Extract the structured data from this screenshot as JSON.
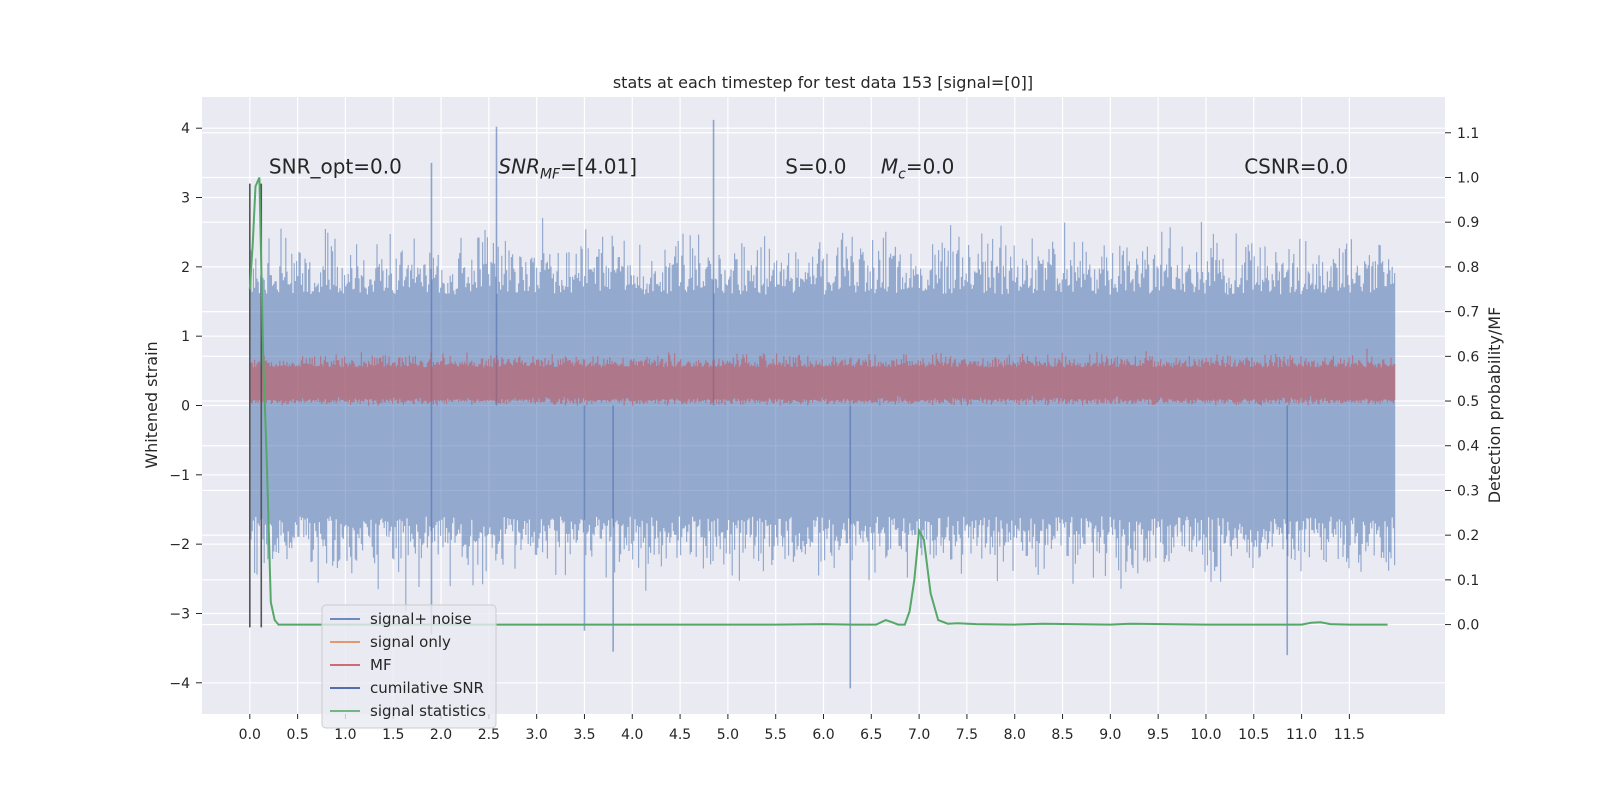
{
  "chart_data": {
    "type": "line",
    "title": "stats at each timestep for test data 153 [signal=[0]]",
    "xlabel": "",
    "ylabel": "Whitened strain",
    "y2label": "Detection probability/MF",
    "xlim": [
      -0.5,
      12.5
    ],
    "ylim": [
      -4.45,
      4.45
    ],
    "y2lim": [
      -0.2,
      1.18
    ],
    "x_ticks": [
      0.0,
      0.5,
      1.0,
      1.5,
      2.0,
      2.5,
      3.0,
      3.5,
      4.0,
      4.5,
      5.0,
      5.5,
      6.0,
      6.5,
      7.0,
      7.5,
      8.0,
      8.5,
      9.0,
      9.5,
      10.0,
      10.5,
      11.0,
      11.5
    ],
    "y_ticks": [
      4,
      3,
      2,
      1,
      0,
      -1,
      -2,
      -3,
      -4
    ],
    "y2_ticks": [
      1.1,
      1.0,
      0.9,
      0.8,
      0.7,
      0.6,
      0.5,
      0.4,
      0.3,
      0.2,
      0.1,
      0.0
    ],
    "grid": true,
    "legend_position": "lower-left",
    "annotations": [
      {
        "text": "SNR_opt=0.0",
        "x": 0.2,
        "y": 3.35
      },
      {
        "text": "SNR_MF=[4.01]",
        "x": 2.6,
        "y": 3.35
      },
      {
        "text": "S=0.0",
        "x": 5.6,
        "y": 3.35
      },
      {
        "text": "M_c=0.0",
        "x": 6.6,
        "y": 3.35
      },
      {
        "text": "CSNR=0.0",
        "x": 10.4,
        "y": 3.35
      }
    ],
    "vlines": [
      {
        "x": 0.0,
        "ymin": -3.2,
        "ymax": 3.2
      },
      {
        "x": 0.12,
        "ymin": -3.2,
        "ymax": 3.2
      }
    ],
    "series": [
      {
        "name": "signal+ noise",
        "color": "#4c72b0",
        "axis": "left",
        "description": "noise band roughly from -2.0 to 2.0 with occasional spikes",
        "peaks": [
          {
            "x": 2.58,
            "y": 4.02
          },
          {
            "x": 4.85,
            "y": 4.12
          },
          {
            "x": 1.9,
            "y": 3.5
          },
          {
            "x": 6.28,
            "y": -4.08
          },
          {
            "x": 10.85,
            "y": -3.6
          },
          {
            "x": 3.8,
            "y": -3.55
          },
          {
            "x": 3.5,
            "y": -3.25
          },
          {
            "x": 1.9,
            "y": -3.3
          }
        ]
      },
      {
        "name": "signal only",
        "color": "#dd8452",
        "axis": "left"
      },
      {
        "name": "MF",
        "color": "#c44e52",
        "axis": "left",
        "description": "band roughly from 0.0 to 0.8"
      },
      {
        "name": "cumilative SNR",
        "color": "#2c4f9a",
        "axis": "left"
      },
      {
        "name": "signal statistics",
        "color": "#55a868",
        "axis": "right",
        "x": [
          0.0,
          0.03,
          0.06,
          0.1,
          0.14,
          0.18,
          0.22,
          0.26,
          0.3,
          0.4,
          1.0,
          2.0,
          3.0,
          4.0,
          5.0,
          5.5,
          6.0,
          6.3,
          6.45,
          6.55,
          6.65,
          6.72,
          6.78,
          6.85,
          6.9,
          6.95,
          7.0,
          7.05,
          7.12,
          7.2,
          7.3,
          7.4,
          7.6,
          8.0,
          8.3,
          9.0,
          9.2,
          10.0,
          11.0,
          11.1,
          11.2,
          11.3,
          11.5,
          11.9
        ],
        "values": [
          0.75,
          0.85,
          0.98,
          1.0,
          0.6,
          0.35,
          0.05,
          0.01,
          0.0,
          0.0,
          0.0,
          0.0,
          0.0,
          0.0,
          0.0,
          0.0,
          0.001,
          0.0,
          0.0,
          0.0,
          0.01,
          0.005,
          0.0,
          0.0,
          0.03,
          0.1,
          0.21,
          0.19,
          0.07,
          0.01,
          0.002,
          0.003,
          0.001,
          0.0,
          0.002,
          0.0,
          0.002,
          0.0,
          0.0,
          0.004,
          0.005,
          0.001,
          0.0,
          0.0
        ]
      }
    ]
  }
}
